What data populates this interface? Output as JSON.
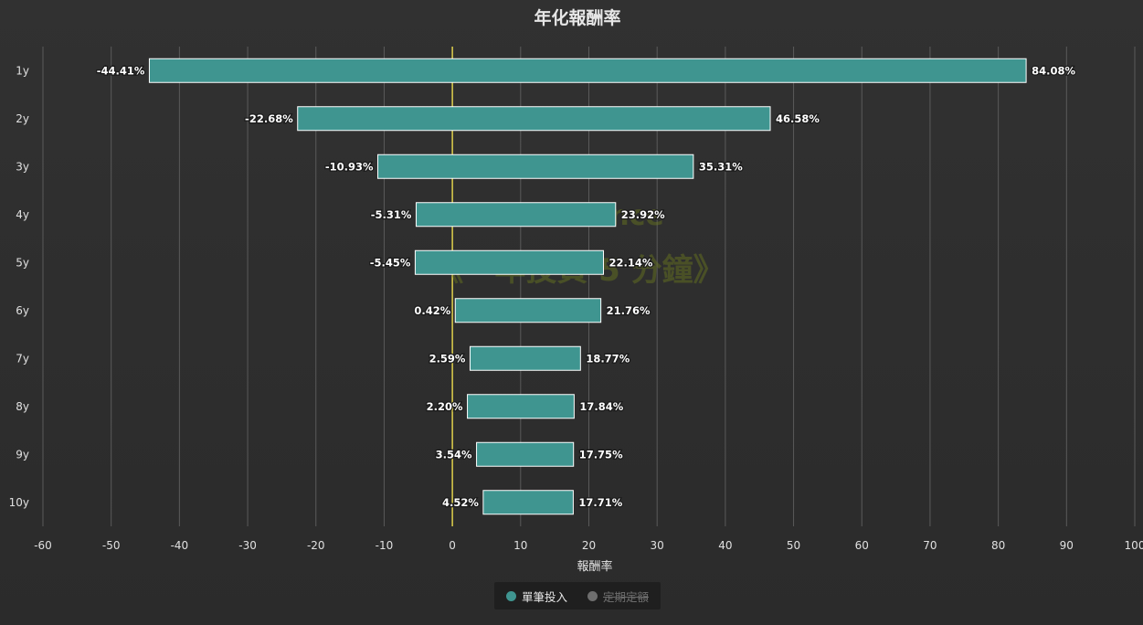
{
  "colors": {
    "bar_fill": "#3f9590",
    "bar_stroke": "#ffffff",
    "zero_line": "#d4c64a",
    "grid": "#5a5a5a",
    "legend_active_dot": "#3f9590",
    "legend_inactive_dot": "#6e6e6e"
  },
  "watermark": {
    "line1": "YP-Finance",
    "line2": "《一年投資 5 分鐘》"
  },
  "legend": {
    "items": [
      {
        "label": "單筆投入",
        "active": true
      },
      {
        "label": "定期定額",
        "active": false
      }
    ]
  },
  "chart_data": {
    "type": "bar",
    "orientation": "horizontal",
    "variant": "floating-range",
    "title": "年化報酬率",
    "xlabel": "報酬率",
    "ylabel": "",
    "xlim": [
      -60,
      100
    ],
    "xticks": [
      -60,
      -50,
      -40,
      -30,
      -20,
      -10,
      0,
      10,
      20,
      30,
      40,
      50,
      60,
      70,
      80,
      90,
      100
    ],
    "grid": true,
    "legend_position": "bottom-center",
    "categories": [
      "1y",
      "2y",
      "3y",
      "4y",
      "5y",
      "6y",
      "7y",
      "8y",
      "9y",
      "10y"
    ],
    "series": [
      {
        "name": "單筆投入",
        "low": [
          -44.41,
          -22.68,
          -10.93,
          -5.31,
          -5.45,
          0.42,
          2.59,
          2.2,
          3.54,
          4.52
        ],
        "high": [
          84.08,
          46.58,
          35.31,
          23.92,
          22.14,
          21.76,
          18.77,
          17.84,
          17.75,
          17.71
        ],
        "low_labels": [
          "-44.41%",
          "-22.68%",
          "-10.93%",
          "-5.31%",
          "-5.45%",
          "0.42%",
          "2.59%",
          "2.20%",
          "3.54%",
          "4.52%"
        ],
        "high_labels": [
          "84.08%",
          "46.58%",
          "35.31%",
          "23.92%",
          "22.14%",
          "21.76%",
          "18.77%",
          "17.84%",
          "17.75%",
          "17.71%"
        ]
      }
    ]
  }
}
